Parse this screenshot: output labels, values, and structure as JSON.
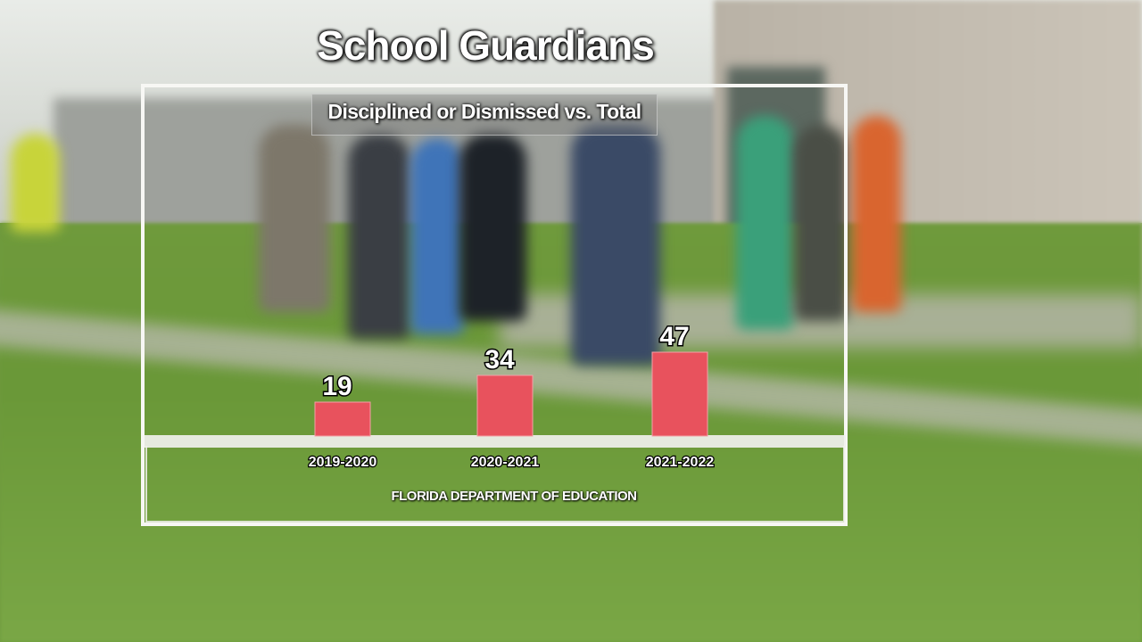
{
  "chart_data": {
    "type": "bar",
    "title": "School Guardians",
    "subtitle": "Disciplined or Dismissed vs. Total",
    "categories": [
      "2019-2020",
      "2020-2021",
      "2021-2022"
    ],
    "values": [
      19,
      34,
      47
    ],
    "ylim": [
      0,
      47
    ],
    "bar_color": "#e8525d",
    "grid": false,
    "source": "FLORIDA DEPARTMENT OF EDUCATION"
  }
}
